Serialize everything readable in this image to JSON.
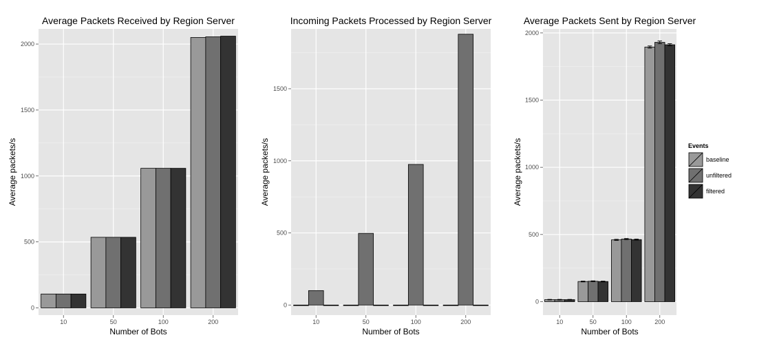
{
  "legend": {
    "title": "Events",
    "items": [
      {
        "label": "baseline",
        "color": "#999999"
      },
      {
        "label": "unfiltered",
        "color": "#707070"
      },
      {
        "label": "filtered",
        "color": "#333333"
      }
    ]
  },
  "colors": {
    "panel_background": "#e5e5e5",
    "grid_major": "#ffffff",
    "grid_minor": "#f2f2f2",
    "bar_outline": "#000000"
  },
  "chart_data": [
    {
      "type": "bar",
      "title": "Average Packets Received by Region Server",
      "xlabel": "Number of Bots",
      "ylabel": "Average packets/s",
      "categories": [
        "10",
        "50",
        "100",
        "200"
      ],
      "ylim": [
        -55,
        2115
      ],
      "yticks": [
        0,
        500,
        1000,
        1500,
        2000
      ],
      "series": [
        {
          "name": "baseline",
          "values": [
            105,
            535,
            1058,
            2050
          ]
        },
        {
          "name": "unfiltered",
          "values": [
            105,
            535,
            1058,
            2055
          ]
        },
        {
          "name": "filtered",
          "values": [
            105,
            535,
            1058,
            2060
          ]
        }
      ],
      "error_bars": false,
      "grid": true
    },
    {
      "type": "bar",
      "title": "Incoming Packets Processed by Region Server",
      "xlabel": "Number of Bots",
      "ylabel": "Average packets/s",
      "categories": [
        "10",
        "50",
        "100",
        "200"
      ],
      "ylim": [
        -70,
        1915
      ],
      "yticks": [
        0,
        500,
        1000,
        1500
      ],
      "series": [
        {
          "name": "baseline",
          "values": [
            0,
            0,
            0,
            0
          ]
        },
        {
          "name": "unfiltered",
          "values": [
            100,
            497,
            975,
            1878
          ]
        },
        {
          "name": "filtered",
          "values": [
            0,
            0,
            0,
            0
          ]
        }
      ],
      "error_bars": false,
      "grid": true
    },
    {
      "type": "bar",
      "title": "Average Packets Sent by Region Server",
      "xlabel": "Number of Bots",
      "ylabel": "Average packets/s",
      "categories": [
        "10",
        "50",
        "100",
        "200"
      ],
      "ylim": [
        -100,
        2030
      ],
      "yticks": [
        0,
        500,
        1000,
        1500,
        2000
      ],
      "series": [
        {
          "name": "baseline",
          "values": [
            15,
            150,
            460,
            1895
          ],
          "errors": [
            2,
            3,
            4,
            8
          ]
        },
        {
          "name": "unfiltered",
          "values": [
            15,
            152,
            466,
            1930
          ],
          "errors": [
            2,
            3,
            4,
            10
          ]
        },
        {
          "name": "filtered",
          "values": [
            15,
            150,
            462,
            1912
          ],
          "errors": [
            2,
            3,
            4,
            8
          ]
        }
      ],
      "error_bars": true,
      "grid": true
    }
  ]
}
